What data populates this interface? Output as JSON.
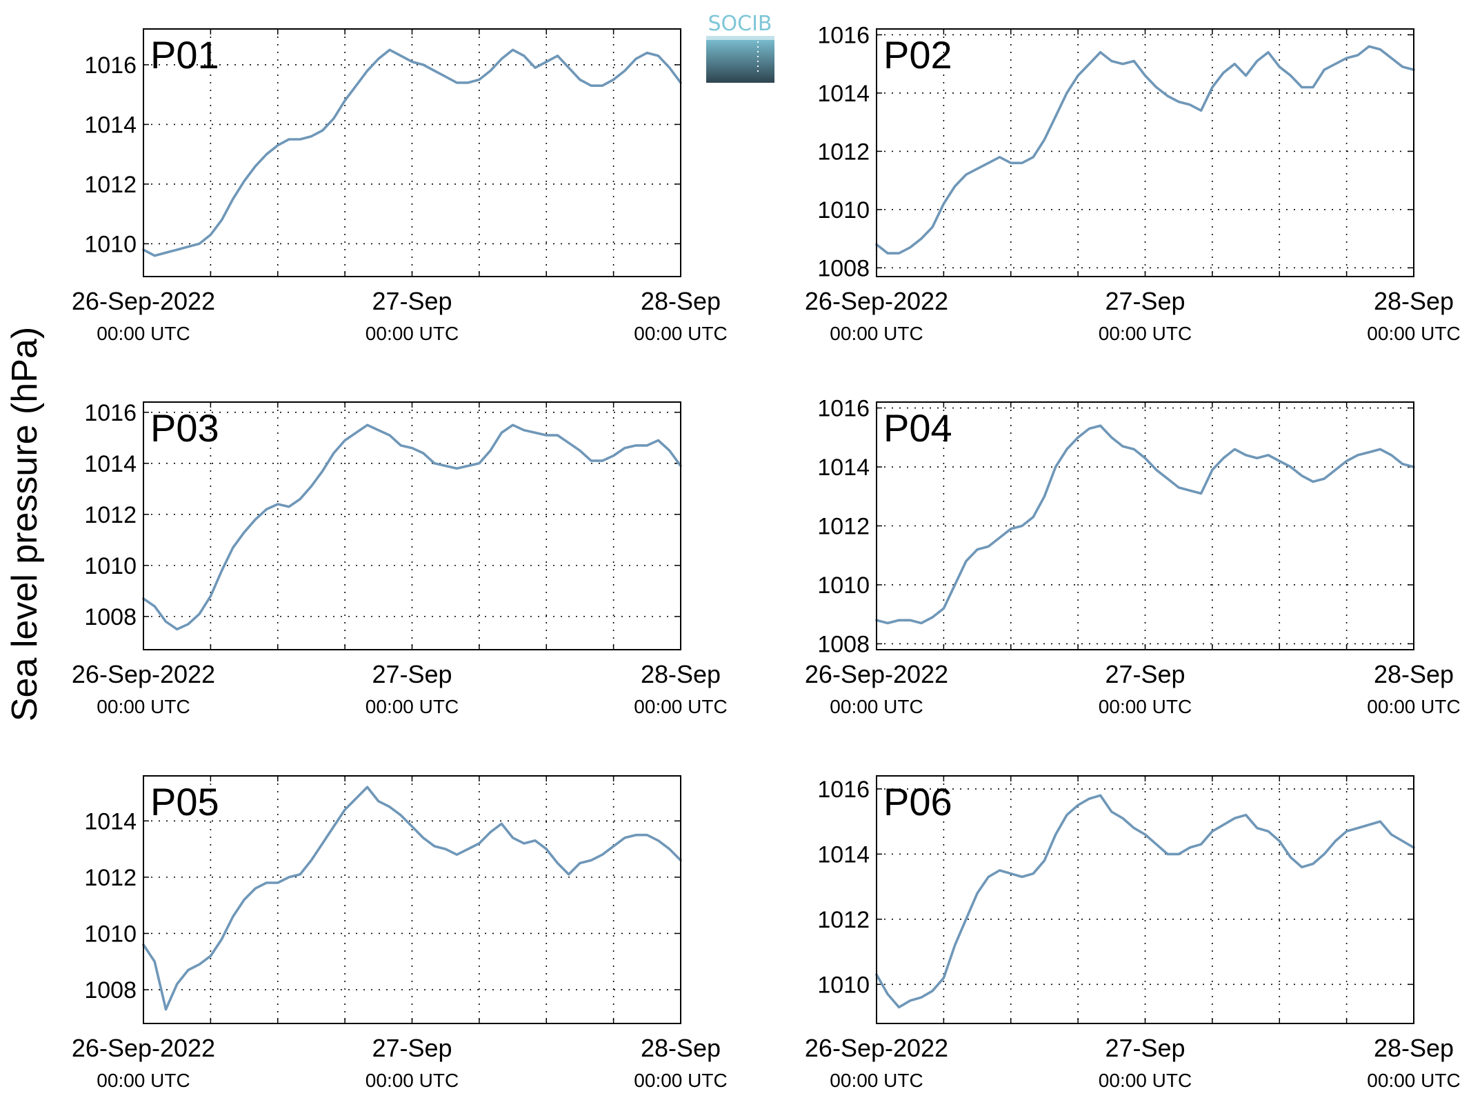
{
  "figure": {
    "ylabel": "Sea level pressure (hPa)",
    "logo_text": "SOCIB"
  },
  "colors": {
    "series": "#6f97b8",
    "panel_label": "#ff0000",
    "grid": "#000000",
    "logo_top": "#7ec6d8",
    "logo_bottom": "#2f4450"
  },
  "chart_data": [
    {
      "type": "line",
      "panel_label": "P01",
      "x_range": [
        "2022-09-26 00:00 UTC",
        "2022-09-28 00:00 UTC"
      ],
      "x_ticks": [
        {
          "date": "26-Sep-2022",
          "time": "00:00 UTC"
        },
        {
          "date": "27-Sep",
          "time": "00:00 UTC"
        },
        {
          "date": "28-Sep",
          "time": "00:00 UTC"
        }
      ],
      "grid": true,
      "ylim": [
        1008.9,
        1017.2
      ],
      "yticks": [
        1010,
        1012,
        1014,
        1016
      ],
      "series": [
        {
          "x_hours": [
            0,
            1,
            2,
            3,
            4,
            5,
            6,
            7,
            8,
            9,
            10,
            11,
            12,
            13,
            14,
            15,
            16,
            17,
            18,
            19,
            20,
            21,
            22,
            23,
            24,
            25,
            26,
            27,
            28,
            29,
            30,
            31,
            32,
            33,
            34,
            35,
            36,
            37,
            38,
            39,
            40,
            41,
            42,
            43,
            44,
            45,
            46,
            47,
            48
          ],
          "values": [
            1009.8,
            1009.6,
            1009.7,
            1009.8,
            1009.9,
            1010.0,
            1010.3,
            1010.8,
            1011.5,
            1012.1,
            1012.6,
            1013.0,
            1013.3,
            1013.5,
            1013.5,
            1013.6,
            1013.8,
            1014.2,
            1014.8,
            1015.3,
            1015.8,
            1016.2,
            1016.5,
            1016.3,
            1016.1,
            1016.0,
            1015.8,
            1015.6,
            1015.4,
            1015.4,
            1015.5,
            1015.8,
            1016.2,
            1016.5,
            1016.3,
            1015.9,
            1016.1,
            1016.3,
            1015.9,
            1015.5,
            1015.3,
            1015.3,
            1015.5,
            1015.8,
            1016.2,
            1016.4,
            1016.3,
            1015.9,
            1015.4
          ]
        }
      ]
    },
    {
      "type": "line",
      "panel_label": "P02",
      "x_range": [
        "2022-09-26 00:00 UTC",
        "2022-09-28 00:00 UTC"
      ],
      "x_ticks": [
        {
          "date": "26-Sep-2022",
          "time": "00:00 UTC"
        },
        {
          "date": "27-Sep",
          "time": "00:00 UTC"
        },
        {
          "date": "28-Sep",
          "time": "00:00 UTC"
        }
      ],
      "grid": true,
      "ylim": [
        1007.7,
        1016.2
      ],
      "yticks": [
        1008,
        1010,
        1012,
        1014,
        1016
      ],
      "series": [
        {
          "x_hours": [
            0,
            1,
            2,
            3,
            4,
            5,
            6,
            7,
            8,
            9,
            10,
            11,
            12,
            13,
            14,
            15,
            16,
            17,
            18,
            19,
            20,
            21,
            22,
            23,
            24,
            25,
            26,
            27,
            28,
            29,
            30,
            31,
            32,
            33,
            34,
            35,
            36,
            37,
            38,
            39,
            40,
            41,
            42,
            43,
            44,
            45,
            46,
            47,
            48
          ],
          "values": [
            1008.8,
            1008.5,
            1008.5,
            1008.7,
            1009.0,
            1009.4,
            1010.2,
            1010.8,
            1011.2,
            1011.4,
            1011.6,
            1011.8,
            1011.6,
            1011.6,
            1011.8,
            1012.4,
            1013.2,
            1014.0,
            1014.6,
            1015.0,
            1015.4,
            1015.1,
            1015.0,
            1015.1,
            1014.6,
            1014.2,
            1013.9,
            1013.7,
            1013.6,
            1013.4,
            1014.2,
            1014.7,
            1015.0,
            1014.6,
            1015.1,
            1015.4,
            1014.9,
            1014.6,
            1014.2,
            1014.2,
            1014.8,
            1015.0,
            1015.2,
            1015.3,
            1015.6,
            1015.5,
            1015.2,
            1014.9,
            1014.8
          ]
        }
      ]
    },
    {
      "type": "line",
      "panel_label": "P03",
      "x_range": [
        "2022-09-26 00:00 UTC",
        "2022-09-28 00:00 UTC"
      ],
      "x_ticks": [
        {
          "date": "26-Sep-2022",
          "time": "00:00 UTC"
        },
        {
          "date": "27-Sep",
          "time": "00:00 UTC"
        },
        {
          "date": "28-Sep",
          "time": "00:00 UTC"
        }
      ],
      "grid": true,
      "ylim": [
        1006.7,
        1016.4
      ],
      "yticks": [
        1008,
        1010,
        1012,
        1014,
        1016
      ],
      "series": [
        {
          "x_hours": [
            0,
            1,
            2,
            3,
            4,
            5,
            6,
            7,
            8,
            9,
            10,
            11,
            12,
            13,
            14,
            15,
            16,
            17,
            18,
            19,
            20,
            21,
            22,
            23,
            24,
            25,
            26,
            27,
            28,
            29,
            30,
            31,
            32,
            33,
            34,
            35,
            36,
            37,
            38,
            39,
            40,
            41,
            42,
            43,
            44,
            45,
            46,
            47,
            48
          ],
          "values": [
            1008.7,
            1008.4,
            1007.8,
            1007.5,
            1007.7,
            1008.1,
            1008.8,
            1009.8,
            1010.7,
            1011.3,
            1011.8,
            1012.2,
            1012.4,
            1012.3,
            1012.6,
            1013.1,
            1013.7,
            1014.4,
            1014.9,
            1015.2,
            1015.5,
            1015.3,
            1015.1,
            1014.7,
            1014.6,
            1014.4,
            1014.0,
            1013.9,
            1013.8,
            1013.9,
            1014.0,
            1014.5,
            1015.2,
            1015.5,
            1015.3,
            1015.2,
            1015.1,
            1015.1,
            1014.8,
            1014.5,
            1014.1,
            1014.1,
            1014.3,
            1014.6,
            1014.7,
            1014.7,
            1014.9,
            1014.5,
            1013.9
          ]
        }
      ]
    },
    {
      "type": "line",
      "panel_label": "P04",
      "x_range": [
        "2022-09-26 00:00 UTC",
        "2022-09-28 00:00 UTC"
      ],
      "x_ticks": [
        {
          "date": "26-Sep-2022",
          "time": "00:00 UTC"
        },
        {
          "date": "27-Sep",
          "time": "00:00 UTC"
        },
        {
          "date": "28-Sep",
          "time": "00:00 UTC"
        }
      ],
      "grid": true,
      "ylim": [
        1007.8,
        1016.2
      ],
      "yticks": [
        1008,
        1010,
        1012,
        1014,
        1016
      ],
      "series": [
        {
          "x_hours": [
            0,
            1,
            2,
            3,
            4,
            5,
            6,
            7,
            8,
            9,
            10,
            11,
            12,
            13,
            14,
            15,
            16,
            17,
            18,
            19,
            20,
            21,
            22,
            23,
            24,
            25,
            26,
            27,
            28,
            29,
            30,
            31,
            32,
            33,
            34,
            35,
            36,
            37,
            38,
            39,
            40,
            41,
            42,
            43,
            44,
            45,
            46,
            47,
            48
          ],
          "values": [
            1008.8,
            1008.7,
            1008.8,
            1008.8,
            1008.7,
            1008.9,
            1009.2,
            1010.0,
            1010.8,
            1011.2,
            1011.3,
            1011.6,
            1011.9,
            1012.0,
            1012.3,
            1013.0,
            1014.0,
            1014.6,
            1015.0,
            1015.3,
            1015.4,
            1015.0,
            1014.7,
            1014.6,
            1014.3,
            1013.9,
            1013.6,
            1013.3,
            1013.2,
            1013.1,
            1013.9,
            1014.3,
            1014.6,
            1014.4,
            1014.3,
            1014.4,
            1014.2,
            1014.0,
            1013.7,
            1013.5,
            1013.6,
            1013.9,
            1014.2,
            1014.4,
            1014.5,
            1014.6,
            1014.4,
            1014.1,
            1014.0
          ]
        }
      ]
    },
    {
      "type": "line",
      "panel_label": "P05",
      "x_range": [
        "2022-09-26 00:00 UTC",
        "2022-09-28 00:00 UTC"
      ],
      "x_ticks": [
        {
          "date": "26-Sep-2022",
          "time": "00:00 UTC"
        },
        {
          "date": "27-Sep",
          "time": "00:00 UTC"
        },
        {
          "date": "28-Sep",
          "time": "00:00 UTC"
        }
      ],
      "grid": true,
      "ylim": [
        1006.8,
        1015.6
      ],
      "yticks": [
        1008,
        1010,
        1012,
        1014
      ],
      "series": [
        {
          "x_hours": [
            0,
            1,
            2,
            3,
            4,
            5,
            6,
            7,
            8,
            9,
            10,
            11,
            12,
            13,
            14,
            15,
            16,
            17,
            18,
            19,
            20,
            21,
            22,
            23,
            24,
            25,
            26,
            27,
            28,
            29,
            30,
            31,
            32,
            33,
            34,
            35,
            36,
            37,
            38,
            39,
            40,
            41,
            42,
            43,
            44,
            45,
            46,
            47,
            48
          ],
          "values": [
            1009.6,
            1009.0,
            1007.3,
            1008.2,
            1008.7,
            1008.9,
            1009.2,
            1009.8,
            1010.6,
            1011.2,
            1011.6,
            1011.8,
            1011.8,
            1012.0,
            1012.1,
            1012.6,
            1013.2,
            1013.8,
            1014.4,
            1014.8,
            1015.2,
            1014.7,
            1014.5,
            1014.2,
            1013.8,
            1013.4,
            1013.1,
            1013.0,
            1012.8,
            1013.0,
            1013.2,
            1013.6,
            1013.9,
            1013.4,
            1013.2,
            1013.3,
            1013.0,
            1012.5,
            1012.1,
            1012.5,
            1012.6,
            1012.8,
            1013.1,
            1013.4,
            1013.5,
            1013.5,
            1013.3,
            1013.0,
            1012.6
          ]
        }
      ]
    },
    {
      "type": "line",
      "panel_label": "P06",
      "x_range": [
        "2022-09-26 00:00 UTC",
        "2022-09-28 00:00 UTC"
      ],
      "x_ticks": [
        {
          "date": "26-Sep-2022",
          "time": "00:00 UTC"
        },
        {
          "date": "27-Sep",
          "time": "00:00 UTC"
        },
        {
          "date": "28-Sep",
          "time": "00:00 UTC"
        }
      ],
      "grid": true,
      "ylim": [
        1008.8,
        1016.4
      ],
      "yticks": [
        1010,
        1012,
        1014,
        1016
      ],
      "series": [
        {
          "x_hours": [
            0,
            1,
            2,
            3,
            4,
            5,
            6,
            7,
            8,
            9,
            10,
            11,
            12,
            13,
            14,
            15,
            16,
            17,
            18,
            19,
            20,
            21,
            22,
            23,
            24,
            25,
            26,
            27,
            28,
            29,
            30,
            31,
            32,
            33,
            34,
            35,
            36,
            37,
            38,
            39,
            40,
            41,
            42,
            43,
            44,
            45,
            46,
            47,
            48
          ],
          "values": [
            1010.3,
            1009.7,
            1009.3,
            1009.5,
            1009.6,
            1009.8,
            1010.2,
            1011.2,
            1012.0,
            1012.8,
            1013.3,
            1013.5,
            1013.4,
            1013.3,
            1013.4,
            1013.8,
            1014.6,
            1015.2,
            1015.5,
            1015.7,
            1015.8,
            1015.3,
            1015.1,
            1014.8,
            1014.6,
            1014.3,
            1014.0,
            1014.0,
            1014.2,
            1014.3,
            1014.7,
            1014.9,
            1015.1,
            1015.2,
            1014.8,
            1014.7,
            1014.4,
            1013.9,
            1013.6,
            1013.7,
            1014.0,
            1014.4,
            1014.7,
            1014.8,
            1014.9,
            1015.0,
            1014.6,
            1014.4,
            1014.2
          ]
        }
      ]
    }
  ]
}
